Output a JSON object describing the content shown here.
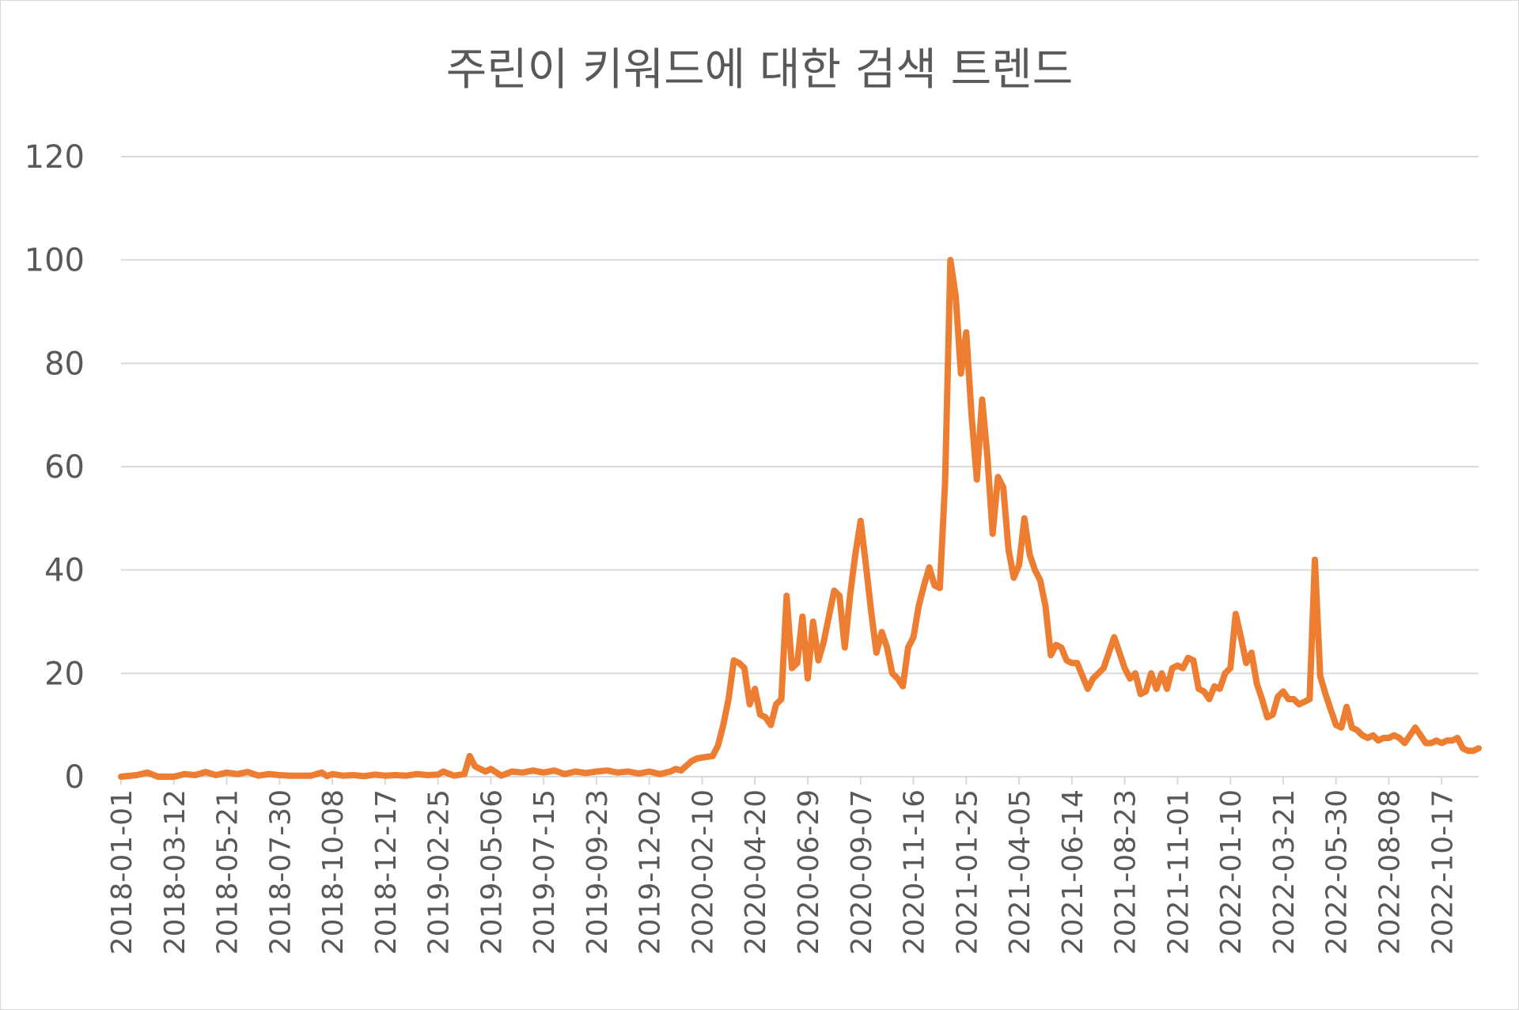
{
  "chart_data": {
    "type": "line",
    "title": "주린이 키워드에 대한 검색 트렌드",
    "xlabel": "",
    "ylabel": "",
    "ylim": [
      0,
      120
    ],
    "yticks": [
      0,
      20,
      40,
      60,
      80,
      100,
      120
    ],
    "grid": true,
    "legend": "none",
    "x_tick_labels": [
      "2018-01-01",
      "2018-03-12",
      "2018-05-21",
      "2018-07-30",
      "2018-10-08",
      "2018-12-17",
      "2019-02-25",
      "2019-05-06",
      "2019-07-15",
      "2019-09-23",
      "2019-12-02",
      "2020-02-10",
      "2020-04-20",
      "2020-06-29",
      "2020-09-07",
      "2020-11-16",
      "2021-01-25",
      "2021-04-05",
      "2021-06-14",
      "2021-08-23",
      "2021-11-01",
      "2022-01-10",
      "2022-03-21",
      "2022-05-30",
      "2022-08-08",
      "2022-10-17"
    ],
    "series": [
      {
        "color": "#ED7D31",
        "points": [
          [
            "2018-01-01",
            0
          ],
          [
            "2018-01-22",
            0.3
          ],
          [
            "2018-02-05",
            0.8
          ],
          [
            "2018-02-19",
            0
          ],
          [
            "2018-03-12",
            0
          ],
          [
            "2018-03-26",
            0.5
          ],
          [
            "2018-04-09",
            0.3
          ],
          [
            "2018-04-23",
            0.9
          ],
          [
            "2018-05-07",
            0.3
          ],
          [
            "2018-05-21",
            0.8
          ],
          [
            "2018-06-04",
            0.5
          ],
          [
            "2018-06-18",
            0.9
          ],
          [
            "2018-07-02",
            0.2
          ],
          [
            "2018-07-16",
            0.5
          ],
          [
            "2018-07-30",
            0.3
          ],
          [
            "2018-08-13",
            0.2
          ],
          [
            "2018-08-27",
            0.2
          ],
          [
            "2018-09-10",
            0.2
          ],
          [
            "2018-09-24",
            0.8
          ],
          [
            "2018-10-01",
            0.1
          ],
          [
            "2018-10-08",
            0.5
          ],
          [
            "2018-10-22",
            0.2
          ],
          [
            "2018-11-05",
            0.3
          ],
          [
            "2018-11-19",
            0.1
          ],
          [
            "2018-12-03",
            0.4
          ],
          [
            "2018-12-17",
            0.2
          ],
          [
            "2018-12-31",
            0.3
          ],
          [
            "2019-01-14",
            0.2
          ],
          [
            "2019-01-28",
            0.5
          ],
          [
            "2019-02-11",
            0.3
          ],
          [
            "2019-02-25",
            0.4
          ],
          [
            "2019-03-04",
            1.0
          ],
          [
            "2019-03-18",
            0.2
          ],
          [
            "2019-04-01",
            0.5
          ],
          [
            "2019-04-08",
            4.0
          ],
          [
            "2019-04-15",
            2.0
          ],
          [
            "2019-04-29",
            1.0
          ],
          [
            "2019-05-06",
            1.5
          ],
          [
            "2019-05-20",
            0.2
          ],
          [
            "2019-06-03",
            1.0
          ],
          [
            "2019-06-17",
            0.8
          ],
          [
            "2019-07-01",
            1.2
          ],
          [
            "2019-07-15",
            0.8
          ],
          [
            "2019-07-29",
            1.2
          ],
          [
            "2019-08-12",
            0.5
          ],
          [
            "2019-08-26",
            1.0
          ],
          [
            "2019-09-09",
            0.7
          ],
          [
            "2019-09-23",
            1.0
          ],
          [
            "2019-10-07",
            1.2
          ],
          [
            "2019-10-21",
            0.8
          ],
          [
            "2019-11-04",
            1.0
          ],
          [
            "2019-11-18",
            0.6
          ],
          [
            "2019-12-02",
            1.0
          ],
          [
            "2019-12-16",
            0.5
          ],
          [
            "2019-12-30",
            1.0
          ],
          [
            "2020-01-06",
            1.5
          ],
          [
            "2020-01-13",
            1.2
          ],
          [
            "2020-01-27",
            3.0
          ],
          [
            "2020-02-03",
            3.5
          ],
          [
            "2020-02-10",
            3.7
          ],
          [
            "2020-02-24",
            4.0
          ],
          [
            "2020-03-02",
            6.0
          ],
          [
            "2020-03-09",
            10.0
          ],
          [
            "2020-03-16",
            15.0
          ],
          [
            "2020-03-23",
            22.5
          ],
          [
            "2020-03-30",
            22.0
          ],
          [
            "2020-04-06",
            21.0
          ],
          [
            "2020-04-13",
            14.0
          ],
          [
            "2020-04-20",
            17.0
          ],
          [
            "2020-04-27",
            12.0
          ],
          [
            "2020-05-04",
            11.5
          ],
          [
            "2020-05-11",
            10.0
          ],
          [
            "2020-05-18",
            14.0
          ],
          [
            "2020-05-25",
            15.0
          ],
          [
            "2020-06-01",
            35.0
          ],
          [
            "2020-06-08",
            21.0
          ],
          [
            "2020-06-15",
            22.0
          ],
          [
            "2020-06-22",
            31.0
          ],
          [
            "2020-06-29",
            19.0
          ],
          [
            "2020-07-06",
            30.0
          ],
          [
            "2020-07-13",
            22.5
          ],
          [
            "2020-07-20",
            26.0
          ],
          [
            "2020-07-27",
            31.0
          ],
          [
            "2020-08-03",
            36.0
          ],
          [
            "2020-08-10",
            35.0
          ],
          [
            "2020-08-17",
            25.0
          ],
          [
            "2020-08-24",
            35.0
          ],
          [
            "2020-08-31",
            43.0
          ],
          [
            "2020-09-07",
            49.5
          ],
          [
            "2020-09-14",
            41.0
          ],
          [
            "2020-09-21",
            32.0
          ],
          [
            "2020-09-28",
            24.0
          ],
          [
            "2020-10-05",
            28.0
          ],
          [
            "2020-10-12",
            25.0
          ],
          [
            "2020-10-19",
            20.0
          ],
          [
            "2020-10-26",
            19.0
          ],
          [
            "2020-11-02",
            17.5
          ],
          [
            "2020-11-09",
            25.0
          ],
          [
            "2020-11-16",
            27.0
          ],
          [
            "2020-11-23",
            33.0
          ],
          [
            "2020-11-30",
            37.0
          ],
          [
            "2020-12-07",
            40.5
          ],
          [
            "2020-12-14",
            37.0
          ],
          [
            "2020-12-21",
            36.5
          ],
          [
            "2020-12-28",
            57.0
          ],
          [
            "2021-01-04",
            100.0
          ],
          [
            "2021-01-11",
            93.0
          ],
          [
            "2021-01-18",
            78.0
          ],
          [
            "2021-01-25",
            86.0
          ],
          [
            "2021-02-01",
            70.0
          ],
          [
            "2021-02-08",
            57.5
          ],
          [
            "2021-02-15",
            73.0
          ],
          [
            "2021-02-22",
            62.0
          ],
          [
            "2021-03-01",
            47.0
          ],
          [
            "2021-03-08",
            58.0
          ],
          [
            "2021-03-15",
            56.0
          ],
          [
            "2021-03-22",
            44.0
          ],
          [
            "2021-03-29",
            38.5
          ],
          [
            "2021-04-05",
            41.0
          ],
          [
            "2021-04-12",
            50.0
          ],
          [
            "2021-04-19",
            43.0
          ],
          [
            "2021-04-26",
            40.0
          ],
          [
            "2021-05-03",
            38.0
          ],
          [
            "2021-05-10",
            33.0
          ],
          [
            "2021-05-17",
            23.5
          ],
          [
            "2021-05-24",
            25.5
          ],
          [
            "2021-05-31",
            25.0
          ],
          [
            "2021-06-07",
            22.5
          ],
          [
            "2021-06-14",
            22.0
          ],
          [
            "2021-06-21",
            22.0
          ],
          [
            "2021-06-28",
            19.5
          ],
          [
            "2021-07-05",
            17.0
          ],
          [
            "2021-07-12",
            19.0
          ],
          [
            "2021-07-19",
            20.0
          ],
          [
            "2021-07-26",
            21.0
          ],
          [
            "2021-08-02",
            24.0
          ],
          [
            "2021-08-09",
            27.0
          ],
          [
            "2021-08-16",
            24.0
          ],
          [
            "2021-08-23",
            21.0
          ],
          [
            "2021-08-30",
            19.0
          ],
          [
            "2021-09-06",
            20.0
          ],
          [
            "2021-09-13",
            16.0
          ],
          [
            "2021-09-20",
            16.5
          ],
          [
            "2021-09-27",
            20.0
          ],
          [
            "2021-10-04",
            17.0
          ],
          [
            "2021-10-11",
            20.0
          ],
          [
            "2021-10-18",
            17.0
          ],
          [
            "2021-10-25",
            21.0
          ],
          [
            "2021-11-01",
            21.5
          ],
          [
            "2021-11-08",
            21.0
          ],
          [
            "2021-11-15",
            23.0
          ],
          [
            "2021-11-22",
            22.5
          ],
          [
            "2021-11-29",
            17.0
          ],
          [
            "2021-12-06",
            16.5
          ],
          [
            "2021-12-13",
            15.0
          ],
          [
            "2021-12-20",
            17.5
          ],
          [
            "2021-12-27",
            17.0
          ],
          [
            "2022-01-03",
            20.0
          ],
          [
            "2022-01-10",
            21.0
          ],
          [
            "2022-01-17",
            31.5
          ],
          [
            "2022-01-24",
            27.0
          ],
          [
            "2022-01-31",
            22.0
          ],
          [
            "2022-02-07",
            24.0
          ],
          [
            "2022-02-14",
            18.0
          ],
          [
            "2022-02-21",
            15.0
          ],
          [
            "2022-02-28",
            11.5
          ],
          [
            "2022-03-07",
            12.0
          ],
          [
            "2022-03-14",
            15.5
          ],
          [
            "2022-03-21",
            16.5
          ],
          [
            "2022-03-28",
            15.0
          ],
          [
            "2022-04-04",
            15.0
          ],
          [
            "2022-04-11",
            14.0
          ],
          [
            "2022-04-18",
            14.5
          ],
          [
            "2022-04-25",
            15.0
          ],
          [
            "2022-05-02",
            42.0
          ],
          [
            "2022-05-09",
            19.5
          ],
          [
            "2022-05-16",
            16.0
          ],
          [
            "2022-05-23",
            13.0
          ],
          [
            "2022-05-30",
            10.0
          ],
          [
            "2022-06-06",
            9.5
          ],
          [
            "2022-06-13",
            13.5
          ],
          [
            "2022-06-20",
            9.5
          ],
          [
            "2022-06-27",
            9.0
          ],
          [
            "2022-07-04",
            8.0
          ],
          [
            "2022-07-11",
            7.5
          ],
          [
            "2022-07-18",
            8.0
          ],
          [
            "2022-07-25",
            7.0
          ],
          [
            "2022-08-01",
            7.5
          ],
          [
            "2022-08-08",
            7.5
          ],
          [
            "2022-08-15",
            8.0
          ],
          [
            "2022-08-22",
            7.5
          ],
          [
            "2022-08-29",
            6.5
          ],
          [
            "2022-09-05",
            8.0
          ],
          [
            "2022-09-12",
            9.5
          ],
          [
            "2022-09-19",
            8.0
          ],
          [
            "2022-09-26",
            6.5
          ],
          [
            "2022-10-03",
            6.5
          ],
          [
            "2022-10-10",
            7.0
          ],
          [
            "2022-10-17",
            6.5
          ],
          [
            "2022-10-24",
            7.0
          ],
          [
            "2022-10-31",
            7.0
          ],
          [
            "2022-11-07",
            7.5
          ],
          [
            "2022-11-14",
            5.5
          ],
          [
            "2022-11-21",
            5.0
          ],
          [
            "2022-11-28",
            5.0
          ],
          [
            "2022-12-05",
            5.5
          ]
        ]
      }
    ]
  }
}
